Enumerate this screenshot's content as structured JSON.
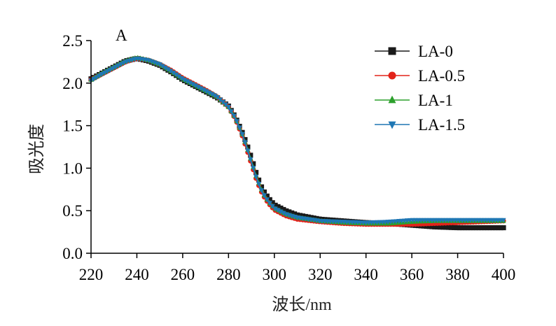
{
  "chart_data": {
    "type": "line",
    "panel_label": "A",
    "title": "",
    "xlabel": "波长/nm",
    "ylabel": "吸光度",
    "xlim": [
      220,
      400
    ],
    "ylim": [
      0.0,
      2.5
    ],
    "xticks": [
      "220",
      "240",
      "260",
      "280",
      "300",
      "320",
      "340",
      "360",
      "380",
      "400"
    ],
    "yticks": [
      "0.0",
      "0.5",
      "1.0",
      "1.5",
      "2.0",
      "2.5"
    ],
    "grid": false,
    "legend_position": "top-right",
    "series": [
      {
        "name": "LA-0",
        "color": "#1a1a1a",
        "marker": "square",
        "x": [
          220,
          225,
          230,
          235,
          240,
          245,
          250,
          255,
          260,
          265,
          270,
          275,
          280,
          283,
          286,
          288,
          290,
          292,
          294,
          296,
          298,
          300,
          305,
          310,
          320,
          330,
          340,
          350,
          360,
          370,
          380,
          390,
          400
        ],
        "y": [
          2.05,
          2.12,
          2.19,
          2.26,
          2.29,
          2.26,
          2.21,
          2.13,
          2.04,
          1.97,
          1.9,
          1.83,
          1.73,
          1.6,
          1.42,
          1.28,
          1.12,
          0.95,
          0.8,
          0.7,
          0.63,
          0.57,
          0.5,
          0.45,
          0.4,
          0.38,
          0.36,
          0.35,
          0.33,
          0.31,
          0.3,
          0.3,
          0.3
        ]
      },
      {
        "name": "LA-0.5",
        "color": "#e2231a",
        "marker": "circle",
        "x": [
          220,
          225,
          230,
          235,
          240,
          245,
          250,
          255,
          260,
          265,
          270,
          275,
          280,
          283,
          286,
          288,
          290,
          292,
          294,
          296,
          298,
          300,
          305,
          310,
          320,
          330,
          340,
          350,
          360,
          370,
          380,
          390,
          400
        ],
        "y": [
          2.04,
          2.11,
          2.18,
          2.25,
          2.29,
          2.27,
          2.22,
          2.15,
          2.06,
          1.99,
          1.92,
          1.84,
          1.72,
          1.58,
          1.38,
          1.22,
          1.05,
          0.88,
          0.74,
          0.64,
          0.57,
          0.51,
          0.44,
          0.4,
          0.37,
          0.35,
          0.34,
          0.34,
          0.34,
          0.35,
          0.36,
          0.37,
          0.38
        ]
      },
      {
        "name": "LA-1",
        "color": "#2ca02c",
        "marker": "triangle-up",
        "x": [
          220,
          225,
          230,
          235,
          240,
          245,
          250,
          255,
          260,
          265,
          270,
          275,
          280,
          283,
          286,
          288,
          290,
          292,
          294,
          296,
          298,
          300,
          305,
          310,
          320,
          330,
          340,
          350,
          360,
          370,
          380,
          390,
          400
        ],
        "y": [
          2.04,
          2.12,
          2.19,
          2.26,
          2.3,
          2.27,
          2.22,
          2.14,
          2.05,
          1.98,
          1.91,
          1.84,
          1.72,
          1.59,
          1.4,
          1.25,
          1.08,
          0.91,
          0.77,
          0.66,
          0.59,
          0.53,
          0.46,
          0.42,
          0.38,
          0.36,
          0.35,
          0.35,
          0.37,
          0.38,
          0.38,
          0.38,
          0.38
        ]
      },
      {
        "name": "LA-1.5",
        "color": "#1f77b4",
        "marker": "triangle-down",
        "x": [
          220,
          225,
          230,
          235,
          240,
          245,
          250,
          255,
          260,
          265,
          270,
          275,
          280,
          283,
          286,
          288,
          290,
          292,
          294,
          296,
          298,
          300,
          305,
          310,
          320,
          330,
          340,
          350,
          360,
          370,
          380,
          390,
          400
        ],
        "y": [
          2.03,
          2.11,
          2.18,
          2.25,
          2.29,
          2.27,
          2.22,
          2.14,
          2.05,
          1.98,
          1.91,
          1.84,
          1.72,
          1.59,
          1.4,
          1.24,
          1.07,
          0.9,
          0.76,
          0.66,
          0.59,
          0.53,
          0.46,
          0.42,
          0.38,
          0.37,
          0.36,
          0.37,
          0.39,
          0.39,
          0.39,
          0.39,
          0.39
        ]
      }
    ]
  }
}
